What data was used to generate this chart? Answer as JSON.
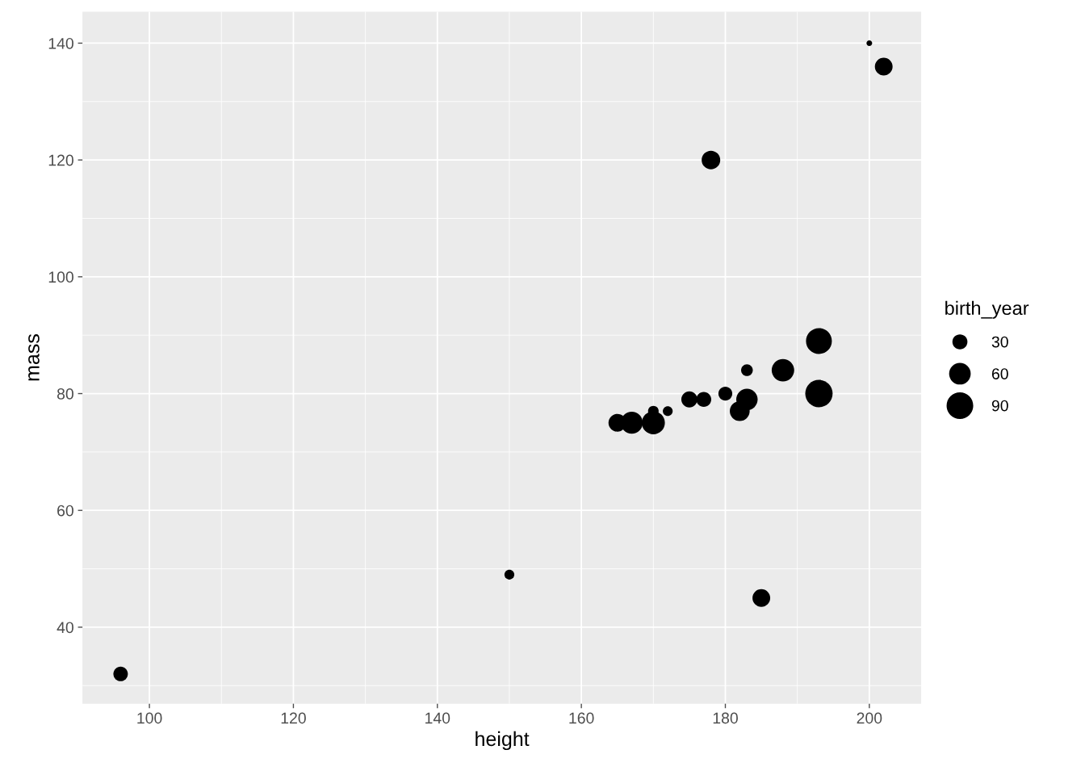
{
  "chart_data": {
    "type": "bubble",
    "xlabel": "height",
    "ylabel": "mass",
    "legend_title": "birth_year",
    "x": [
      165,
      167,
      170,
      170,
      172,
      175,
      177,
      180,
      183,
      183,
      182,
      188,
      193,
      193,
      150,
      96,
      185,
      178,
      202,
      200
    ],
    "values": [
      75,
      75,
      77,
      75,
      77,
      79,
      79,
      80,
      84,
      79,
      77,
      84,
      89,
      80,
      49,
      32,
      45,
      120,
      136,
      140
    ],
    "sizes": [
      41,
      62,
      16,
      68,
      14,
      34,
      30,
      26,
      19,
      59,
      51,
      65,
      85,
      95,
      14,
      28,
      41,
      45,
      41,
      6
    ],
    "size_legend": [
      30,
      60,
      90
    ],
    "color": "#000000",
    "xlim": [
      90.7,
      207.2
    ],
    "ylim": [
      26.9,
      145.4
    ],
    "xticks": [
      100,
      120,
      140,
      160,
      180,
      200
    ],
    "yticks": [
      40,
      60,
      80,
      100,
      120,
      140
    ],
    "grid": true
  }
}
